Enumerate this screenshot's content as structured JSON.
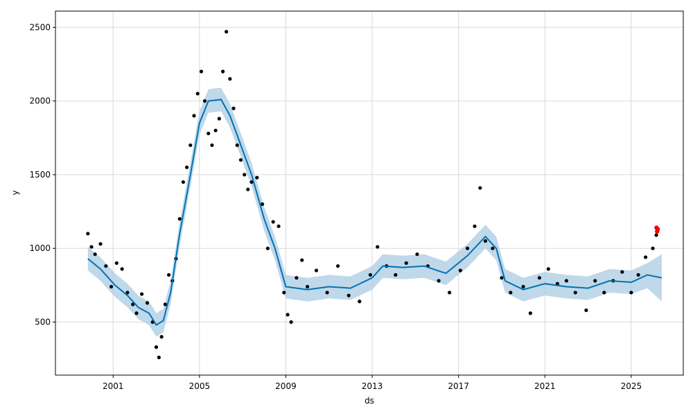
{
  "chart_data": {
    "type": "scatter",
    "title": "",
    "xlabel": "ds",
    "ylabel": "y",
    "xlim": [
      "1998-05-01",
      "2027-06-01"
    ],
    "ylim": [
      140,
      2610
    ],
    "x_ticks": [
      "2001",
      "2005",
      "2009",
      "2013",
      "2017",
      "2021",
      "2025"
    ],
    "y_ticks": [
      500,
      1000,
      1500,
      2000,
      2500
    ],
    "grid": true,
    "colors": {
      "observed": "#000000",
      "forecast_line": "#0072B2",
      "uncertainty_band": "#a9cbe3",
      "highlight": "#ff0000",
      "grid": "#d9d9d9"
    },
    "series": [
      {
        "name": "observed",
        "kind": "scatter",
        "points": [
          [
            "1999-11-01",
            1100
          ],
          [
            "2000-01-01",
            1010
          ],
          [
            "2000-03-01",
            960
          ],
          [
            "2000-06-01",
            1030
          ],
          [
            "2000-09-01",
            880
          ],
          [
            "2000-12-01",
            740
          ],
          [
            "2001-03-01",
            900
          ],
          [
            "2001-06-01",
            860
          ],
          [
            "2001-09-01",
            700
          ],
          [
            "2001-12-01",
            620
          ],
          [
            "2002-02-01",
            560
          ],
          [
            "2002-05-01",
            690
          ],
          [
            "2002-08-01",
            630
          ],
          [
            "2002-11-01",
            500
          ],
          [
            "2003-01-01",
            330
          ],
          [
            "2003-02-15",
            260
          ],
          [
            "2003-04-01",
            400
          ],
          [
            "2003-06-01",
            620
          ],
          [
            "2003-08-01",
            820
          ],
          [
            "2003-10-01",
            780
          ],
          [
            "2003-12-01",
            930
          ],
          [
            "2004-02-01",
            1200
          ],
          [
            "2004-04-01",
            1450
          ],
          [
            "2004-06-01",
            1550
          ],
          [
            "2004-08-01",
            1700
          ],
          [
            "2004-10-01",
            1900
          ],
          [
            "2004-12-01",
            2050
          ],
          [
            "2005-02-01",
            2200
          ],
          [
            "2005-04-01",
            2000
          ],
          [
            "2005-06-01",
            1780
          ],
          [
            "2005-08-01",
            1700
          ],
          [
            "2005-10-01",
            1800
          ],
          [
            "2005-12-01",
            1880
          ],
          [
            "2006-02-01",
            2200
          ],
          [
            "2006-04-01",
            2470
          ],
          [
            "2006-06-01",
            2150
          ],
          [
            "2006-08-01",
            1950
          ],
          [
            "2006-10-01",
            1700
          ],
          [
            "2006-12-01",
            1600
          ],
          [
            "2007-02-01",
            1500
          ],
          [
            "2007-04-01",
            1400
          ],
          [
            "2007-06-01",
            1450
          ],
          [
            "2007-09-01",
            1480
          ],
          [
            "2007-12-01",
            1300
          ],
          [
            "2008-03-01",
            1000
          ],
          [
            "2008-06-01",
            1180
          ],
          [
            "2008-09-01",
            1150
          ],
          [
            "2008-12-01",
            700
          ],
          [
            "2009-02-01",
            550
          ],
          [
            "2009-04-01",
            500
          ],
          [
            "2009-07-01",
            800
          ],
          [
            "2009-10-01",
            920
          ],
          [
            "2010-01-01",
            740
          ],
          [
            "2010-06-01",
            850
          ],
          [
            "2010-12-01",
            700
          ],
          [
            "2011-06-01",
            880
          ],
          [
            "2011-12-01",
            680
          ],
          [
            "2012-06-01",
            640
          ],
          [
            "2012-12-01",
            820
          ],
          [
            "2013-04-01",
            1010
          ],
          [
            "2013-09-01",
            880
          ],
          [
            "2014-02-01",
            820
          ],
          [
            "2014-08-01",
            900
          ],
          [
            "2015-02-01",
            960
          ],
          [
            "2015-08-01",
            880
          ],
          [
            "2016-02-01",
            780
          ],
          [
            "2016-08-01",
            700
          ],
          [
            "2017-02-01",
            850
          ],
          [
            "2017-06-01",
            1000
          ],
          [
            "2017-10-01",
            1150
          ],
          [
            "2018-01-01",
            1410
          ],
          [
            "2018-04-01",
            1050
          ],
          [
            "2018-08-01",
            1000
          ],
          [
            "2019-01-01",
            800
          ],
          [
            "2019-06-01",
            700
          ],
          [
            "2020-01-01",
            740
          ],
          [
            "2020-05-01",
            560
          ],
          [
            "2020-10-01",
            800
          ],
          [
            "2021-03-01",
            860
          ],
          [
            "2021-08-01",
            760
          ],
          [
            "2022-01-01",
            780
          ],
          [
            "2022-06-01",
            700
          ],
          [
            "2022-12-01",
            580
          ],
          [
            "2023-05-01",
            780
          ],
          [
            "2023-10-01",
            700
          ],
          [
            "2024-03-01",
            780
          ],
          [
            "2024-08-01",
            840
          ],
          [
            "2025-01-01",
            700
          ],
          [
            "2025-05-01",
            820
          ],
          [
            "2025-09-01",
            940
          ],
          [
            "2026-01-01",
            1000
          ],
          [
            "2026-03-01",
            1090
          ]
        ]
      },
      {
        "name": "highlight",
        "kind": "scatter",
        "points": [
          [
            "2026-03-05",
            1140
          ],
          [
            "2026-03-15",
            1115
          ],
          [
            "2026-03-25",
            1130
          ]
        ]
      },
      {
        "name": "fit",
        "kind": "line",
        "points": [
          [
            "1999-11-01",
            930
          ],
          [
            "2000-06-01",
            860
          ],
          [
            "2001-02-01",
            750
          ],
          [
            "2001-09-01",
            680
          ],
          [
            "2002-03-01",
            600
          ],
          [
            "2002-09-01",
            560
          ],
          [
            "2003-01-01",
            480
          ],
          [
            "2003-05-01",
            510
          ],
          [
            "2003-09-01",
            700
          ],
          [
            "2004-02-01",
            1100
          ],
          [
            "2004-08-01",
            1500
          ],
          [
            "2005-01-01",
            1850
          ],
          [
            "2005-06-01",
            2000
          ],
          [
            "2006-01-01",
            2010
          ],
          [
            "2006-06-01",
            1900
          ],
          [
            "2006-12-01",
            1700
          ],
          [
            "2007-06-01",
            1500
          ],
          [
            "2008-01-01",
            1200
          ],
          [
            "2008-07-01",
            1000
          ],
          [
            "2009-01-01",
            740
          ],
          [
            "2010-01-01",
            720
          ],
          [
            "2011-01-01",
            740
          ],
          [
            "2012-01-01",
            730
          ],
          [
            "2013-01-01",
            800
          ],
          [
            "2013-07-01",
            880
          ],
          [
            "2014-06-01",
            870
          ],
          [
            "2015-06-01",
            880
          ],
          [
            "2016-06-01",
            830
          ],
          [
            "2017-06-01",
            950
          ],
          [
            "2018-04-01",
            1080
          ],
          [
            "2018-10-01",
            1000
          ],
          [
            "2019-03-01",
            780
          ],
          [
            "2020-01-01",
            720
          ],
          [
            "2021-01-01",
            760
          ],
          [
            "2022-01-01",
            740
          ],
          [
            "2023-01-01",
            730
          ],
          [
            "2024-01-01",
            780
          ],
          [
            "2025-01-01",
            770
          ],
          [
            "2025-10-01",
            820
          ],
          [
            "2026-06-01",
            800
          ]
        ]
      },
      {
        "name": "uncertainty",
        "kind": "band",
        "points": [
          [
            "1999-11-01",
            850,
            1010
          ],
          [
            "2000-06-01",
            780,
            940
          ],
          [
            "2001-02-01",
            670,
            830
          ],
          [
            "2001-09-01",
            600,
            760
          ],
          [
            "2002-03-01",
            520,
            680
          ],
          [
            "2002-09-01",
            480,
            640
          ],
          [
            "2003-01-01",
            400,
            560
          ],
          [
            "2003-05-01",
            430,
            590
          ],
          [
            "2003-09-01",
            620,
            780
          ],
          [
            "2004-02-01",
            1020,
            1180
          ],
          [
            "2004-08-01",
            1420,
            1580
          ],
          [
            "2005-01-01",
            1770,
            1930
          ],
          [
            "2005-06-01",
            1920,
            2080
          ],
          [
            "2006-01-01",
            1930,
            2090
          ],
          [
            "2006-06-01",
            1820,
            1980
          ],
          [
            "2006-12-01",
            1620,
            1780
          ],
          [
            "2007-06-01",
            1420,
            1580
          ],
          [
            "2008-01-01",
            1120,
            1280
          ],
          [
            "2008-07-01",
            920,
            1080
          ],
          [
            "2009-01-01",
            660,
            820
          ],
          [
            "2010-01-01",
            640,
            800
          ],
          [
            "2011-01-01",
            660,
            820
          ],
          [
            "2012-01-01",
            650,
            810
          ],
          [
            "2013-01-01",
            720,
            880
          ],
          [
            "2013-07-01",
            800,
            960
          ],
          [
            "2014-06-01",
            790,
            950
          ],
          [
            "2015-06-01",
            800,
            960
          ],
          [
            "2016-06-01",
            750,
            910
          ],
          [
            "2017-06-01",
            870,
            1030
          ],
          [
            "2018-04-01",
            1000,
            1160
          ],
          [
            "2018-10-01",
            920,
            1080
          ],
          [
            "2019-03-01",
            700,
            860
          ],
          [
            "2020-01-01",
            640,
            800
          ],
          [
            "2021-01-01",
            680,
            840
          ],
          [
            "2022-01-01",
            660,
            820
          ],
          [
            "2023-01-01",
            650,
            810
          ],
          [
            "2024-01-01",
            700,
            860
          ],
          [
            "2025-01-01",
            690,
            850
          ],
          [
            "2025-10-01",
            730,
            900
          ],
          [
            "2026-06-01",
            640,
            960
          ]
        ]
      }
    ]
  }
}
